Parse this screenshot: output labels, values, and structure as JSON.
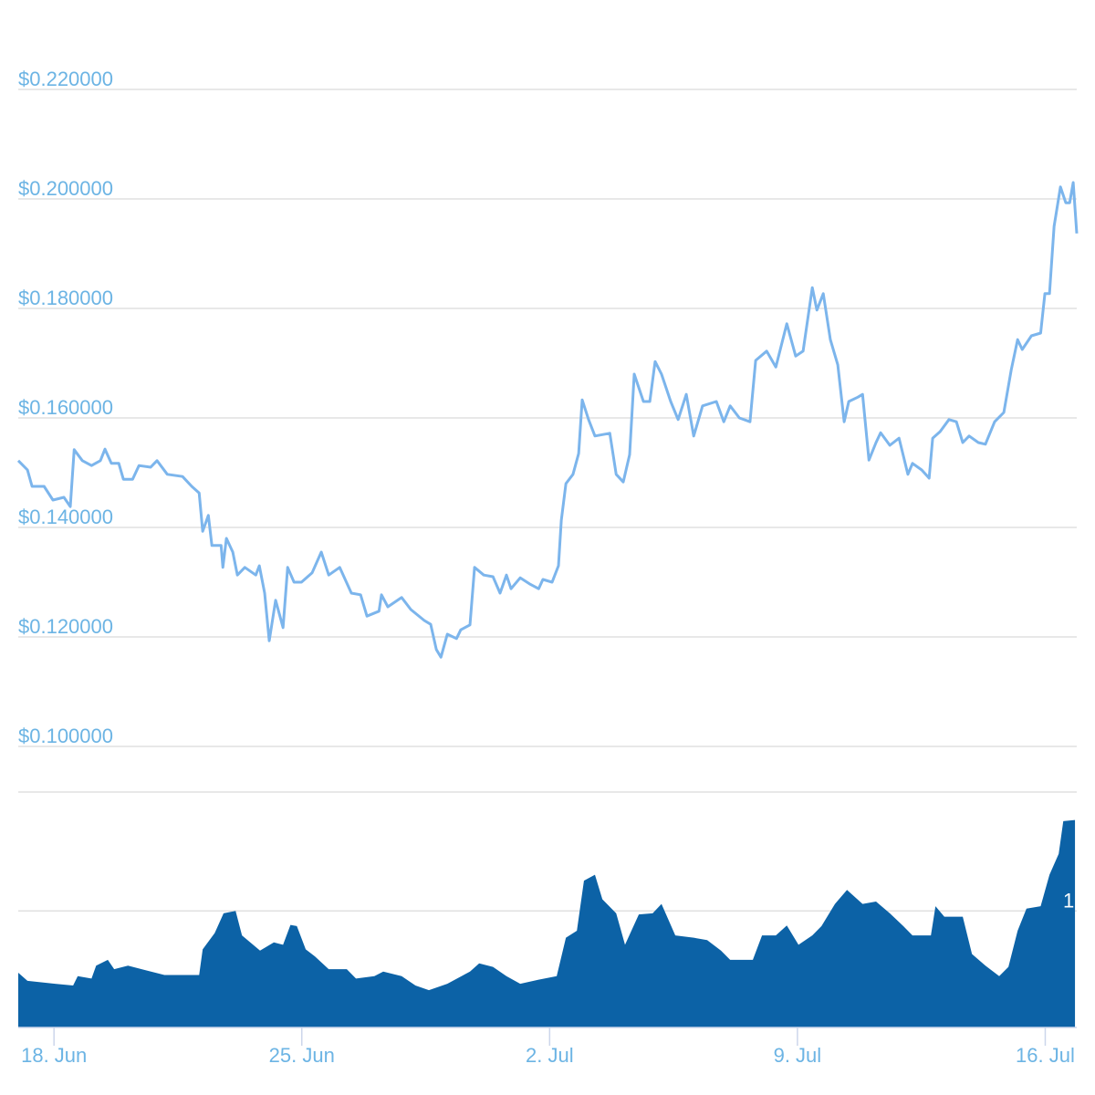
{
  "chart_data": {
    "type": "line",
    "xlim": [
      -1.01,
      28.89
    ],
    "xticks": [
      {
        "value": 0,
        "label": "18. Jun"
      },
      {
        "value": 7,
        "label": "25. Jun"
      },
      {
        "value": 14,
        "label": "2. Jul"
      },
      {
        "value": 21,
        "label": "9. Jul"
      },
      {
        "value": 28,
        "label": "16. Jul"
      }
    ],
    "ylim": [
      0.1,
      0.22
    ],
    "yticks": [
      {
        "value": 0.1,
        "label": "$0.100000"
      },
      {
        "value": 0.12,
        "label": "$0.120000"
      },
      {
        "value": 0.14,
        "label": "$0.140000"
      },
      {
        "value": 0.16,
        "label": "$0.160000"
      },
      {
        "value": 0.18,
        "label": "$0.180000"
      },
      {
        "value": 0.2,
        "label": "$0.200000"
      },
      {
        "value": 0.22,
        "label": "$0.220000"
      }
    ],
    "y2lim": [
      0,
      2.02
    ],
    "y2ticks": [
      {
        "value": 1,
        "label": "1"
      }
    ],
    "grid": true,
    "series": [
      {
        "type": "line",
        "color": "#7cb5ec",
        "x": [
          -1.01,
          -0.75,
          -0.62,
          -0.28,
          -0.03,
          0.28,
          0.46,
          0.57,
          0.8,
          1.06,
          1.31,
          1.44,
          1.62,
          1.83,
          1.96,
          2.22,
          2.4,
          2.73,
          2.91,
          3.2,
          3.63,
          3.89,
          4.1,
          4.2,
          4.36,
          4.46,
          4.72,
          4.77,
          4.87,
          5.05,
          5.18,
          5.39,
          5.7,
          5.8,
          5.95,
          6.08,
          6.26,
          6.47,
          6.6,
          6.78,
          6.99,
          7.29,
          7.55,
          7.76,
          8.07,
          8.4,
          8.66,
          8.84,
          9.18,
          9.25,
          9.43,
          9.82,
          10.08,
          10.46,
          10.64,
          10.8,
          10.93,
          11.11,
          11.37,
          11.49,
          11.75,
          11.88,
          12.14,
          12.4,
          12.6,
          12.78,
          12.91,
          13.17,
          13.43,
          13.69,
          13.81,
          14.07,
          14.25,
          14.33,
          14.46,
          14.66,
          14.82,
          14.92,
          15.1,
          15.28,
          15.7,
          15.88,
          16.08,
          16.26,
          16.39,
          16.65,
          16.83,
          16.98,
          17.16,
          17.42,
          17.63,
          17.86,
          18.07,
          18.32,
          18.71,
          18.92,
          19.1,
          19.36,
          19.66,
          19.82,
          20.13,
          20.39,
          20.7,
          20.95,
          21.16,
          21.42,
          21.55,
          21.73,
          21.93,
          22.14,
          22.32,
          22.45,
          22.71,
          22.84,
          23.02,
          23.22,
          23.35,
          23.61,
          23.87,
          24.12,
          24.25,
          24.51,
          24.72,
          24.82,
          25.03,
          25.28,
          25.49,
          25.67,
          25.85,
          26.11,
          26.31,
          26.57,
          26.83,
          27.04,
          27.22,
          27.35,
          27.61,
          27.87,
          27.99,
          28.12,
          28.25,
          28.43,
          28.58,
          28.69,
          28.79,
          28.89
        ],
        "values": [
          0.1522,
          0.1505,
          0.1475,
          0.1475,
          0.145,
          0.1455,
          0.1438,
          0.1542,
          0.1522,
          0.1513,
          0.1522,
          0.1543,
          0.1517,
          0.1517,
          0.1488,
          0.1488,
          0.1513,
          0.151,
          0.1522,
          0.1497,
          0.1493,
          0.1475,
          0.1463,
          0.1393,
          0.1422,
          0.1367,
          0.1367,
          0.1327,
          0.138,
          0.1355,
          0.1313,
          0.1327,
          0.1313,
          0.133,
          0.128,
          0.1193,
          0.1267,
          0.1217,
          0.1327,
          0.13,
          0.13,
          0.1317,
          0.1355,
          0.1313,
          0.1327,
          0.128,
          0.1277,
          0.1238,
          0.1247,
          0.1277,
          0.1255,
          0.1272,
          0.125,
          0.123,
          0.1223,
          0.1177,
          0.1163,
          0.1205,
          0.1197,
          0.1213,
          0.1222,
          0.1327,
          0.1313,
          0.131,
          0.128,
          0.1313,
          0.1288,
          0.1308,
          0.1297,
          0.1288,
          0.1305,
          0.13,
          0.133,
          0.1413,
          0.148,
          0.1497,
          0.1535,
          0.1633,
          0.1597,
          0.1567,
          0.1572,
          0.1497,
          0.1483,
          0.1533,
          0.168,
          0.163,
          0.163,
          0.1703,
          0.168,
          0.163,
          0.1597,
          0.1643,
          0.1567,
          0.1622,
          0.163,
          0.1593,
          0.1622,
          0.16,
          0.1593,
          0.1705,
          0.1722,
          0.1693,
          0.1772,
          0.1713,
          0.1722,
          0.1838,
          0.1797,
          0.1827,
          0.1743,
          0.1697,
          0.1593,
          0.163,
          0.1638,
          0.1643,
          0.1523,
          0.1555,
          0.1573,
          0.155,
          0.1563,
          0.1497,
          0.1517,
          0.1505,
          0.149,
          0.1563,
          0.1575,
          0.1597,
          0.1593,
          0.1555,
          0.1567,
          0.1555,
          0.1552,
          0.1593,
          0.161,
          0.1688,
          0.1743,
          0.1725,
          0.175,
          0.1755,
          0.1827,
          0.1827,
          0.195,
          0.2022,
          0.1993,
          0.1993,
          0.203,
          0.1937
        ]
      },
      {
        "type": "area",
        "axis": "y2",
        "color": "#0c62a6",
        "x": [
          -1.01,
          -0.75,
          0.03,
          0.54,
          0.67,
          1.06,
          1.19,
          1.52,
          1.7,
          2.09,
          2.6,
          3.12,
          3.63,
          4.1,
          4.2,
          4.54,
          4.79,
          5.13,
          5.31,
          5.82,
          6.21,
          6.47,
          6.68,
          6.86,
          7.11,
          7.37,
          7.76,
          8.27,
          8.53,
          9.05,
          9.3,
          9.82,
          10.21,
          10.59,
          11.11,
          11.75,
          12.01,
          12.4,
          12.78,
          13.17,
          13.69,
          14.2,
          14.46,
          14.77,
          14.97,
          15.28,
          15.49,
          15.88,
          16.13,
          16.52,
          16.91,
          17.16,
          17.55,
          18.07,
          18.45,
          18.84,
          19.1,
          19.74,
          20.0,
          20.39,
          20.7,
          21.03,
          21.42,
          21.68,
          22.06,
          22.4,
          22.84,
          23.22,
          23.61,
          23.99,
          24.25,
          24.77,
          24.9,
          25.15,
          25.67,
          25.93,
          26.31,
          26.7,
          26.96,
          27.22,
          27.47,
          27.87,
          28.12,
          28.38,
          28.51,
          28.84
        ],
        "values": [
          0.47,
          0.4,
          0.375,
          0.36,
          0.44,
          0.42,
          0.53,
          0.58,
          0.5,
          0.53,
          0.49,
          0.45,
          0.45,
          0.45,
          0.67,
          0.81,
          0.98,
          1.0,
          0.79,
          0.66,
          0.73,
          0.71,
          0.88,
          0.87,
          0.67,
          0.61,
          0.5,
          0.5,
          0.42,
          0.44,
          0.48,
          0.44,
          0.36,
          0.32,
          0.375,
          0.48,
          0.55,
          0.52,
          0.44,
          0.375,
          0.41,
          0.44,
          0.77,
          0.83,
          1.26,
          1.31,
          1.1,
          0.98,
          0.71,
          0.97,
          0.98,
          1.06,
          0.79,
          0.77,
          0.75,
          0.66,
          0.58,
          0.58,
          0.79,
          0.79,
          0.875,
          0.71,
          0.79,
          0.87,
          1.06,
          1.18,
          1.06,
          1.08,
          0.98,
          0.87,
          0.79,
          0.79,
          1.04,
          0.95,
          0.95,
          0.63,
          0.53,
          0.44,
          0.52,
          0.83,
          1.02,
          1.04,
          1.31,
          1.49,
          1.77,
          1.78
        ]
      }
    ]
  }
}
